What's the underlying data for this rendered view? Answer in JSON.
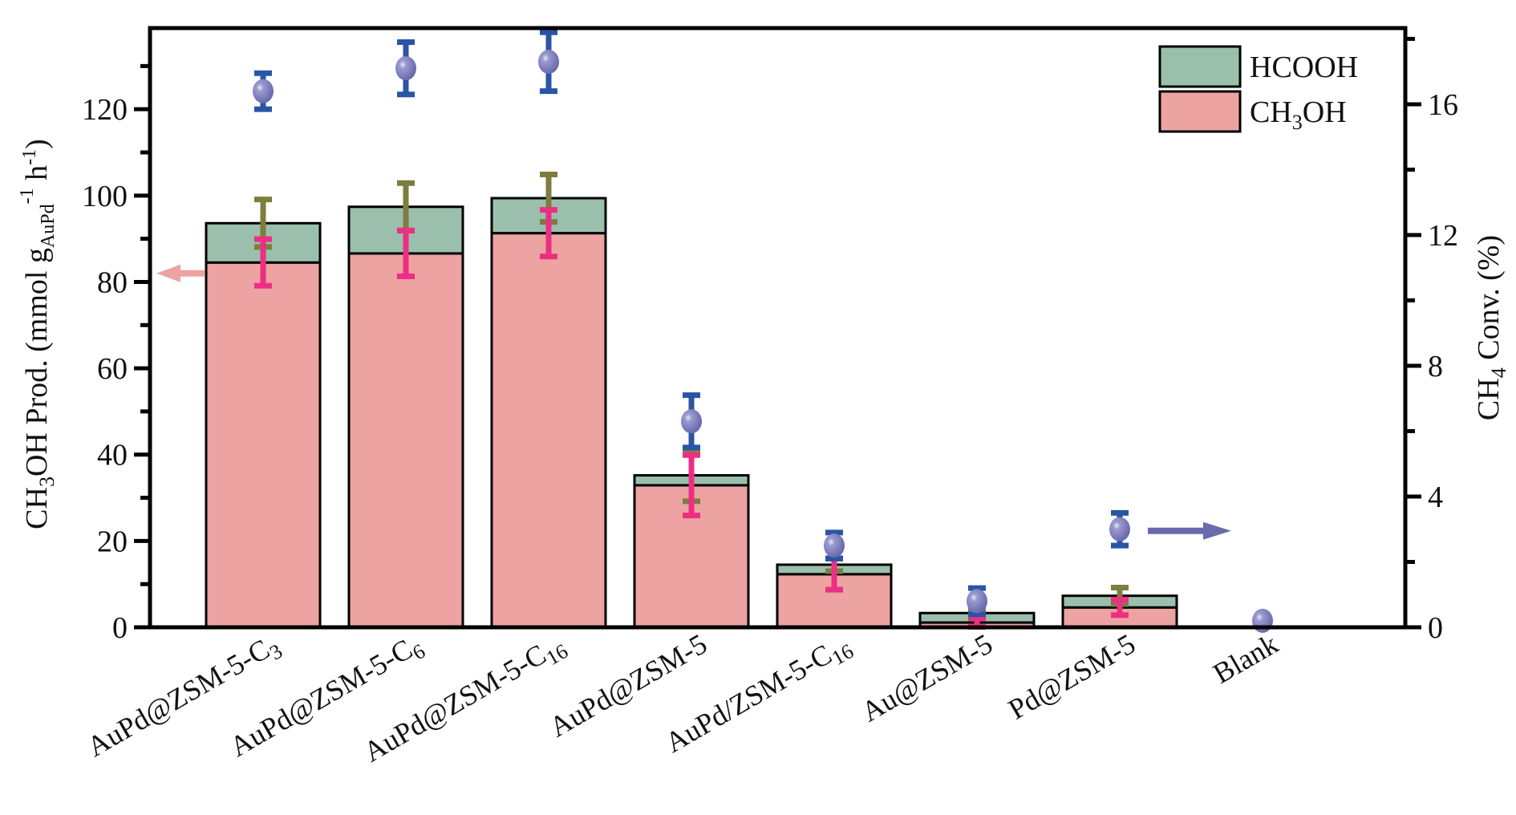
{
  "chart_data": {
    "type": "bar",
    "stacked": true,
    "categories": [
      "AuPd@ZSM-5-C3",
      "AuPd@ZSM-5-C6",
      "AuPd@ZSM-5-C16",
      "AuPd@ZSM-5",
      "AuPd/ZSM-5-C16",
      "Au@ZSM-5",
      "Pd@ZSM-5",
      "Blank"
    ],
    "category_labels": [
      {
        "main": "AuPd@ZSM-5-C",
        "sub": "3"
      },
      {
        "main": "AuPd@ZSM-5-C",
        "sub": "6"
      },
      {
        "main": "AuPd@ZSM-5-C",
        "sub": "16"
      },
      {
        "main": "AuPd@ZSM-5",
        "sub": ""
      },
      {
        "main": "AuPd/ZSM-5-C",
        "sub": "16"
      },
      {
        "main": "Au@ZSM-5",
        "sub": ""
      },
      {
        "main": "Pd@ZSM-5",
        "sub": ""
      },
      {
        "main": "Blank",
        "sub": ""
      }
    ],
    "series": [
      {
        "name": "CH3OH",
        "legend": {
          "main": "CH",
          "sub": "3",
          "rest": "OH"
        },
        "color": "#eca3a1",
        "axis": "left",
        "values": [
          84.5,
          86.6,
          91.3,
          32.9,
          12.3,
          1.1,
          4.6,
          0
        ],
        "errors": [
          5.4,
          5.3,
          5.4,
          7.0,
          3.6,
          1.0,
          1.8,
          0
        ],
        "error_color": "#ec2f83"
      },
      {
        "name": "HCOOH",
        "legend": {
          "main": "HCOOH",
          "sub": "",
          "rest": ""
        },
        "color": "#9bbfad",
        "axis": "left",
        "values": [
          9.1,
          10.8,
          8.1,
          2.3,
          2.2,
          2.2,
          2.7,
          0
        ],
        "totals": [
          93.6,
          97.4,
          99.4,
          35.2,
          14.5,
          3.3,
          7.3,
          0
        ],
        "errors": [
          5.5,
          5.5,
          5.5,
          6.0,
          1.5,
          1.0,
          1.9,
          0
        ],
        "error_color": "#7d7d3e"
      },
      {
        "name": "CH4 Conv.",
        "type": "scatter",
        "color": "#6a6aae",
        "axis": "right",
        "values": [
          16.4,
          17.1,
          17.3,
          6.3,
          2.5,
          0.8,
          3.0,
          0.2
        ],
        "errors": [
          0.55,
          0.8,
          0.9,
          0.8,
          0.4,
          0.4,
          0.5,
          0.1
        ],
        "error_color": "#2a55a5"
      }
    ],
    "ylabel": {
      "pre": "CH",
      "sub1": "3",
      "mid": "OH Prod. (mmol g",
      "sub2": "AuPd",
      "sup1": "-1",
      "h": " h",
      "sup2": "-1",
      "post": ")"
    },
    "y2label": {
      "pre": "CH",
      "sub": "4",
      "post": " Conv. (%)"
    },
    "xlabel": "",
    "ylim": [
      0,
      138.8
    ],
    "y_ticks": [
      0,
      20,
      40,
      60,
      80,
      100,
      120
    ],
    "y_minor_ticks": [
      10,
      30,
      50,
      70,
      90,
      110,
      130
    ],
    "y2lim": [
      0,
      18.33
    ],
    "y2_ticks": [
      0,
      4,
      8,
      12,
      16
    ],
    "y2_minor_ticks": [
      2,
      6,
      10,
      14,
      18
    ],
    "legend_position": "top-right",
    "legend_order": [
      "HCOOH",
      "CH3OH"
    ],
    "annotations": [
      {
        "type": "arrow",
        "direction": "left",
        "color": "#eca3a1",
        "points_to": "left axis",
        "at_value": 82
      },
      {
        "type": "arrow",
        "direction": "right",
        "color": "#6a6aae",
        "points_to": "right axis",
        "at_value": 2.95
      }
    ],
    "grid": false
  }
}
